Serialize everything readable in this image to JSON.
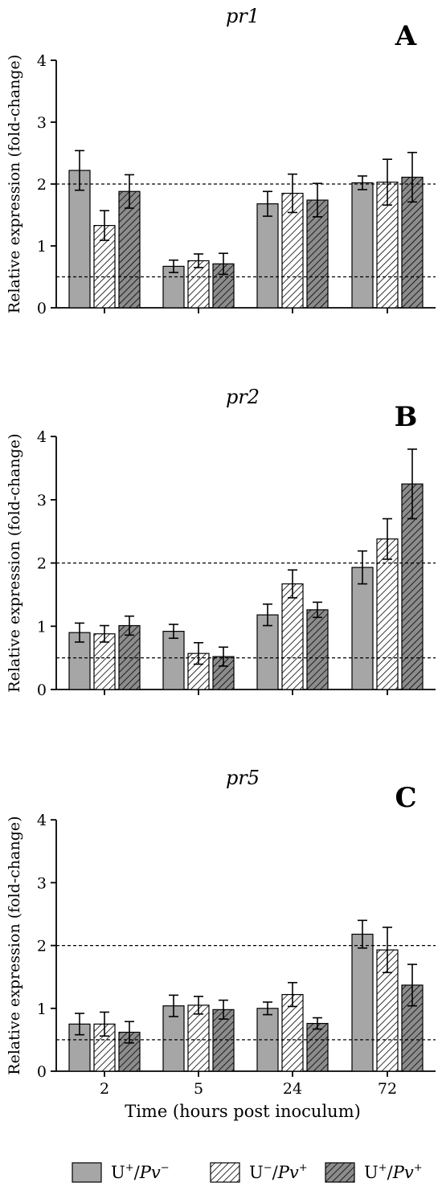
{
  "chart_data": {
    "type": "bar",
    "categories": [
      "2",
      "5",
      "24",
      "72"
    ],
    "xlabel": "Time (hours post inoculum)",
    "ylabel": "Relative expression (fold-change)",
    "ylim": [
      0,
      4
    ],
    "yticks": [
      0,
      1,
      2,
      3,
      4
    ],
    "reference_lines": [
      0.5,
      2
    ],
    "legend": {
      "placement": "bottom",
      "entries": [
        {
          "label": "U",
          "sup1": "+",
          "italic": "Pv",
          "sup2": "−",
          "color": "#a6a6a6",
          "pattern": "solid"
        },
        {
          "label": "U",
          "sup1": "−",
          "italic": "Pv",
          "sup2": "+",
          "color": "#ffffff",
          "pattern": "hatch"
        },
        {
          "label": "U",
          "sup1": "+",
          "italic": "Pv",
          "sup2": "+",
          "color": "#7f7f7f",
          "pattern": "hatch-dark"
        }
      ]
    },
    "panels": [
      {
        "letter": "A",
        "title": "pr1",
        "series": [
          {
            "values": [
              2.22,
              0.67,
              1.68,
              2.02
            ],
            "errors": [
              0.32,
              0.1,
              0.2,
              0.11
            ]
          },
          {
            "values": [
              1.33,
              0.76,
              1.85,
              2.03
            ],
            "errors": [
              0.24,
              0.11,
              0.31,
              0.37
            ]
          },
          {
            "values": [
              1.88,
              0.71,
              1.74,
              2.11
            ],
            "errors": [
              0.27,
              0.17,
              0.27,
              0.4
            ]
          }
        ]
      },
      {
        "letter": "B",
        "title": "pr2",
        "series": [
          {
            "values": [
              0.9,
              0.92,
              1.18,
              1.93
            ],
            "errors": [
              0.15,
              0.11,
              0.17,
              0.26
            ]
          },
          {
            "values": [
              0.88,
              0.57,
              1.67,
              2.38
            ],
            "errors": [
              0.13,
              0.17,
              0.22,
              0.32
            ]
          },
          {
            "values": [
              1.01,
              0.52,
              1.26,
              3.25
            ],
            "errors": [
              0.15,
              0.15,
              0.12,
              0.55
            ]
          }
        ]
      },
      {
        "letter": "C",
        "title": "pr5",
        "series": [
          {
            "values": [
              0.75,
              1.04,
              1.0,
              2.18
            ],
            "errors": [
              0.17,
              0.17,
              0.1,
              0.22
            ]
          },
          {
            "values": [
              0.75,
              1.05,
              1.22,
              1.93
            ],
            "errors": [
              0.19,
              0.14,
              0.19,
              0.36
            ]
          },
          {
            "values": [
              0.62,
              0.98,
              0.76,
              1.37
            ],
            "errors": [
              0.17,
              0.15,
              0.09,
              0.33
            ]
          }
        ]
      }
    ]
  }
}
